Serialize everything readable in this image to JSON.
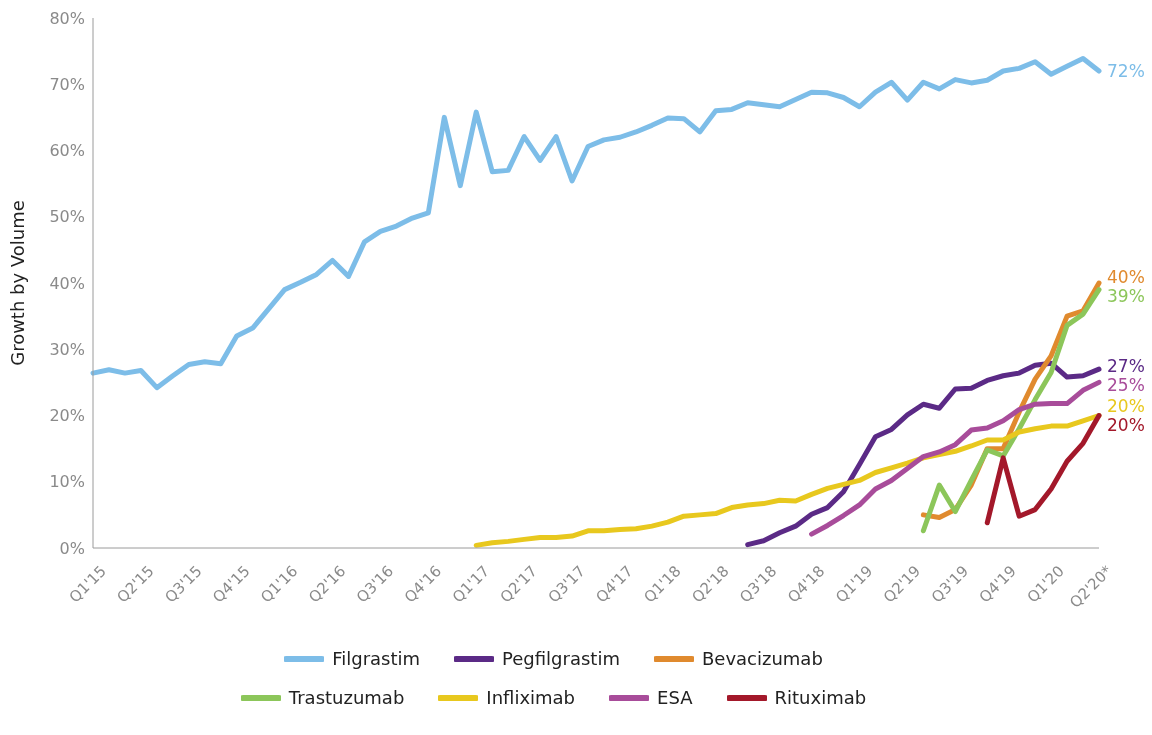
{
  "chart_data": {
    "type": "line",
    "ylabel": "Growth by Volume",
    "categories": [
      "Q1'15",
      null,
      null,
      "Q2'15",
      null,
      null,
      "Q3'15",
      null,
      null,
      "Q4'15",
      null,
      null,
      "Q1'16",
      null,
      null,
      "Q2'16",
      null,
      null,
      "Q3'16",
      null,
      null,
      "Q4'16",
      null,
      null,
      "Q1'17",
      null,
      null,
      "Q2'17",
      null,
      null,
      "Q3'17",
      null,
      null,
      "Q4'17",
      null,
      null,
      "Q1'18",
      null,
      null,
      "Q2'18",
      null,
      null,
      "Q3'18",
      null,
      null,
      "Q4'18",
      null,
      null,
      "Q1'19",
      null,
      null,
      "Q2'19",
      null,
      null,
      "Q3'19",
      null,
      null,
      "Q4'19",
      null,
      null,
      "Q1'20",
      null,
      null,
      "Q2'20*"
    ],
    "series": [
      {
        "name": "Filgrastim",
        "color": "#7dbde8",
        "values": [
          26.4,
          26.9,
          26.4,
          26.8,
          24.2,
          26.0,
          27.7,
          28.1,
          27.8,
          32.0,
          33.2,
          36.1,
          39.0,
          40.1,
          41.3,
          43.4,
          41.0,
          46.2,
          47.8,
          48.6,
          49.8,
          50.6,
          65.0,
          54.7,
          65.8,
          56.8,
          57.0,
          62.1,
          58.5,
          62.1,
          55.4,
          60.6,
          61.6,
          62.0,
          62.8,
          63.8,
          64.9,
          64.8,
          62.8,
          66.0,
          66.2,
          67.2,
          66.9,
          66.6,
          67.7,
          68.8,
          68.7,
          68.0,
          66.6,
          68.8,
          70.3,
          67.6,
          70.3,
          69.3,
          70.7,
          70.2,
          70.6,
          72.0,
          72.4,
          73.4,
          71.5,
          72.7,
          73.9,
          72
        ],
        "value_labels": [
          null,
          null,
          null,
          null,
          null,
          null,
          null,
          null,
          null,
          null,
          null,
          null,
          null,
          null,
          null,
          null,
          null,
          null,
          null,
          null,
          null,
          null,
          null,
          null,
          null,
          null,
          null,
          null,
          null,
          null,
          null,
          null,
          null,
          null,
          null,
          null,
          null,
          null,
          null,
          null,
          null,
          null,
          null,
          null,
          null,
          null,
          null,
          null,
          null,
          null,
          null,
          null,
          null,
          null,
          null,
          null,
          null,
          null,
          null,
          null,
          null,
          null,
          null,
          "72%"
        ]
      },
      {
        "name": "Pegfilgrastim",
        "color": "#5b2a86",
        "values": [
          null,
          null,
          null,
          null,
          null,
          null,
          null,
          null,
          null,
          null,
          null,
          null,
          null,
          null,
          null,
          null,
          null,
          null,
          null,
          null,
          null,
          null,
          null,
          null,
          null,
          null,
          null,
          null,
          null,
          null,
          null,
          null,
          null,
          null,
          null,
          null,
          null,
          null,
          null,
          null,
          null,
          0.5,
          1.1,
          2.3,
          3.3,
          5.1,
          6.1,
          8.5,
          12.6,
          16.8,
          17.9,
          20.1,
          21.7,
          21.1,
          24.0,
          24.1,
          25.3,
          26.0,
          26.4,
          27.6,
          27.9,
          25.8,
          26.0,
          27
        ],
        "value_labels": [
          null,
          null,
          null,
          null,
          null,
          null,
          null,
          null,
          null,
          null,
          null,
          null,
          null,
          null,
          null,
          null,
          null,
          null,
          null,
          null,
          null,
          null,
          null,
          null,
          null,
          null,
          null,
          null,
          null,
          null,
          null,
          null,
          null,
          null,
          null,
          null,
          null,
          null,
          null,
          null,
          null,
          null,
          null,
          null,
          null,
          null,
          null,
          null,
          null,
          null,
          null,
          null,
          null,
          null,
          null,
          null,
          null,
          null,
          null,
          null,
          null,
          null,
          null,
          "27%"
        ]
      },
      {
        "name": "Bevacizumab",
        "color": "#e08a2e",
        "values": [
          null,
          null,
          null,
          null,
          null,
          null,
          null,
          null,
          null,
          null,
          null,
          null,
          null,
          null,
          null,
          null,
          null,
          null,
          null,
          null,
          null,
          null,
          null,
          null,
          null,
          null,
          null,
          null,
          null,
          null,
          null,
          null,
          null,
          null,
          null,
          null,
          null,
          null,
          null,
          null,
          null,
          null,
          null,
          null,
          null,
          null,
          null,
          null,
          null,
          null,
          null,
          null,
          5.0,
          4.6,
          5.8,
          9.5,
          15.0,
          15.0,
          20.5,
          25.5,
          29.0,
          35.0,
          35.8,
          40
        ],
        "value_labels": [
          null,
          null,
          null,
          null,
          null,
          null,
          null,
          null,
          null,
          null,
          null,
          null,
          null,
          null,
          null,
          null,
          null,
          null,
          null,
          null,
          null,
          null,
          null,
          null,
          null,
          null,
          null,
          null,
          null,
          null,
          null,
          null,
          null,
          null,
          null,
          null,
          null,
          null,
          null,
          null,
          null,
          null,
          null,
          null,
          null,
          null,
          null,
          null,
          null,
          null,
          null,
          null,
          null,
          null,
          null,
          null,
          null,
          null,
          null,
          null,
          null,
          null,
          null,
          "40%"
        ]
      },
      {
        "name": "Trastuzumab",
        "color": "#8cc65a",
        "values": [
          null,
          null,
          null,
          null,
          null,
          null,
          null,
          null,
          null,
          null,
          null,
          null,
          null,
          null,
          null,
          null,
          null,
          null,
          null,
          null,
          null,
          null,
          null,
          null,
          null,
          null,
          null,
          null,
          null,
          null,
          null,
          null,
          null,
          null,
          null,
          null,
          null,
          null,
          null,
          null,
          null,
          null,
          null,
          null,
          null,
          null,
          null,
          null,
          null,
          null,
          null,
          null,
          2.6,
          9.5,
          5.5,
          10.2,
          14.8,
          13.9,
          18.0,
          22.4,
          26.5,
          33.6,
          35.3,
          39
        ],
        "value_labels": [
          null,
          null,
          null,
          null,
          null,
          null,
          null,
          null,
          null,
          null,
          null,
          null,
          null,
          null,
          null,
          null,
          null,
          null,
          null,
          null,
          null,
          null,
          null,
          null,
          null,
          null,
          null,
          null,
          null,
          null,
          null,
          null,
          null,
          null,
          null,
          null,
          null,
          null,
          null,
          null,
          null,
          null,
          null,
          null,
          null,
          null,
          null,
          null,
          null,
          null,
          null,
          null,
          null,
          null,
          null,
          null,
          null,
          null,
          null,
          null,
          null,
          null,
          null,
          "39%"
        ]
      },
      {
        "name": "Infliximab",
        "color": "#e8c81e",
        "values": [
          null,
          null,
          null,
          null,
          null,
          null,
          null,
          null,
          null,
          null,
          null,
          null,
          null,
          null,
          null,
          null,
          null,
          null,
          null,
          null,
          null,
          null,
          null,
          null,
          0.4,
          0.8,
          1.0,
          1.3,
          1.6,
          1.6,
          1.8,
          2.6,
          2.6,
          2.8,
          2.9,
          3.3,
          3.9,
          4.8,
          5.0,
          5.2,
          6.1,
          6.5,
          6.7,
          7.2,
          7.1,
          8.1,
          9.0,
          9.6,
          10.2,
          11.4,
          12.1,
          12.8,
          13.6,
          14.1,
          14.6,
          15.4,
          16.3,
          16.3,
          17.5,
          18.0,
          18.4,
          18.4,
          19.2,
          20
        ],
        "value_labels": [
          null,
          null,
          null,
          null,
          null,
          null,
          null,
          null,
          null,
          null,
          null,
          null,
          null,
          null,
          null,
          null,
          null,
          null,
          null,
          null,
          null,
          null,
          null,
          null,
          null,
          null,
          null,
          null,
          null,
          null,
          null,
          null,
          null,
          null,
          null,
          null,
          null,
          null,
          null,
          null,
          null,
          null,
          null,
          null,
          null,
          null,
          null,
          null,
          null,
          null,
          null,
          null,
          null,
          null,
          null,
          null,
          null,
          null,
          null,
          null,
          null,
          null,
          null,
          "20%"
        ]
      },
      {
        "name": "ESA",
        "color": "#a84c9a",
        "values": [
          null,
          null,
          null,
          null,
          null,
          null,
          null,
          null,
          null,
          null,
          null,
          null,
          null,
          null,
          null,
          null,
          null,
          null,
          null,
          null,
          null,
          null,
          null,
          null,
          null,
          null,
          null,
          null,
          null,
          null,
          null,
          null,
          null,
          null,
          null,
          null,
          null,
          null,
          null,
          null,
          null,
          null,
          null,
          null,
          null,
          2.1,
          3.4,
          4.9,
          6.5,
          8.9,
          10.2,
          12.0,
          13.8,
          14.5,
          15.6,
          17.8,
          18.1,
          19.2,
          20.9,
          21.7,
          21.8,
          21.8,
          23.8,
          25
        ],
        "value_labels": [
          null,
          null,
          null,
          null,
          null,
          null,
          null,
          null,
          null,
          null,
          null,
          null,
          null,
          null,
          null,
          null,
          null,
          null,
          null,
          null,
          null,
          null,
          null,
          null,
          null,
          null,
          null,
          null,
          null,
          null,
          null,
          null,
          null,
          null,
          null,
          null,
          null,
          null,
          null,
          null,
          null,
          null,
          null,
          null,
          null,
          null,
          null,
          null,
          null,
          null,
          null,
          null,
          null,
          null,
          null,
          null,
          null,
          null,
          null,
          null,
          null,
          null,
          null,
          "25%"
        ]
      },
      {
        "name": "Rituximab",
        "color": "#a3182a",
        "values": [
          null,
          null,
          null,
          null,
          null,
          null,
          null,
          null,
          null,
          null,
          null,
          null,
          null,
          null,
          null,
          null,
          null,
          null,
          null,
          null,
          null,
          null,
          null,
          null,
          null,
          null,
          null,
          null,
          null,
          null,
          null,
          null,
          null,
          null,
          null,
          null,
          null,
          null,
          null,
          null,
          null,
          null,
          null,
          null,
          null,
          null,
          null,
          null,
          null,
          null,
          null,
          null,
          null,
          null,
          null,
          null,
          3.8,
          13.6,
          4.8,
          5.8,
          8.9,
          13.1,
          15.8,
          20
        ],
        "value_labels": [
          null,
          null,
          null,
          null,
          null,
          null,
          null,
          null,
          null,
          null,
          null,
          null,
          null,
          null,
          null,
          null,
          null,
          null,
          null,
          null,
          null,
          null,
          null,
          null,
          null,
          null,
          null,
          null,
          null,
          null,
          null,
          null,
          null,
          null,
          null,
          null,
          null,
          null,
          null,
          null,
          null,
          null,
          null,
          null,
          null,
          null,
          null,
          null,
          null,
          null,
          null,
          null,
          null,
          null,
          null,
          null,
          null,
          null,
          null,
          null,
          null,
          null,
          null,
          "20%"
        ]
      }
    ],
    "ylim": [
      0,
      80
    ],
    "yticks": [
      {
        "value": 0,
        "label": "0%"
      },
      {
        "value": 10,
        "label": "10%"
      },
      {
        "value": 20,
        "label": "20%"
      },
      {
        "value": 30,
        "label": "30%"
      },
      {
        "value": 40,
        "label": "40%"
      },
      {
        "value": 50,
        "label": "50%"
      },
      {
        "value": 60,
        "label": "60%"
      },
      {
        "value": 70,
        "label": "70%"
      },
      {
        "value": 80,
        "label": "80%"
      }
    ],
    "grid": false,
    "legend": "bottom",
    "marker": "none",
    "line_style": "solid"
  }
}
